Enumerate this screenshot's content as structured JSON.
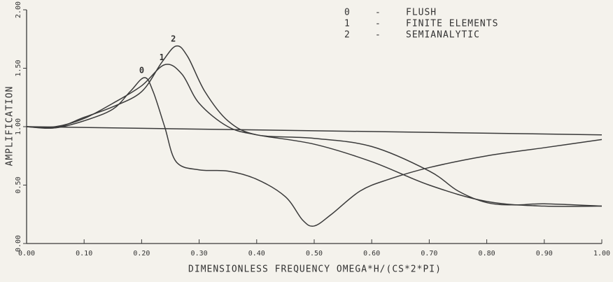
{
  "chart_data": {
    "type": "line",
    "xlabel": "DIMENSIONLESS FREQUENCY OMEGA*H/(CS*2*PI)",
    "ylabel": "AMPLIFICATION",
    "legend_separator": "-",
    "legend": "upper right",
    "color": "#3a3a3a",
    "xlim": [
      0,
      1
    ],
    "ylim": [
      0,
      2
    ],
    "xticks": [
      {
        "value": 0,
        "label": "0.00"
      },
      {
        "value": 0.1,
        "label": "0.10"
      },
      {
        "value": 0.2,
        "label": "0.20"
      },
      {
        "value": 0.3,
        "label": "0.30"
      },
      {
        "value": 0.4,
        "label": "0.40"
      },
      {
        "value": 0.5,
        "label": "0.50"
      },
      {
        "value": 0.6,
        "label": "0.60"
      },
      {
        "value": 0.7,
        "label": "0.70"
      },
      {
        "value": 0.8,
        "label": "0.80"
      },
      {
        "value": 0.9,
        "label": "0.90"
      },
      {
        "value": 1,
        "label": "1.00"
      }
    ],
    "yticks": [
      {
        "value": 0,
        "label": "0.00"
      },
      {
        "value": 0.5,
        "label": "0.50"
      },
      {
        "value": 1,
        "label": "1.00"
      },
      {
        "value": 1.5,
        "label": "1.50"
      },
      {
        "value": 2,
        "label": "2.00"
      }
    ],
    "reference": {
      "x": [
        0,
        1
      ],
      "values": [
        1.0,
        0.93
      ]
    },
    "series": [
      {
        "id": "0",
        "name": "FLUSH",
        "x": [
          0,
          0.05,
          0.1,
          0.15,
          0.18,
          0.205,
          0.22,
          0.24,
          0.26,
          0.3,
          0.35,
          0.4,
          0.45,
          0.48,
          0.5,
          0.53,
          0.58,
          0.63,
          0.7,
          0.8,
          0.9,
          1.0
        ],
        "values": [
          1.0,
          0.99,
          1.05,
          1.15,
          1.3,
          1.42,
          1.3,
          1.0,
          0.7,
          0.63,
          0.62,
          0.55,
          0.4,
          0.2,
          0.15,
          0.25,
          0.45,
          0.55,
          0.65,
          0.75,
          0.82,
          0.89
        ]
      },
      {
        "id": "1",
        "name": "FINITE ELEMENTS",
        "x": [
          0,
          0.05,
          0.1,
          0.15,
          0.2,
          0.24,
          0.27,
          0.3,
          0.35,
          0.4,
          0.5,
          0.6,
          0.7,
          0.8,
          0.9,
          1.0
        ],
        "values": [
          1.0,
          1.0,
          1.07,
          1.2,
          1.35,
          1.53,
          1.45,
          1.2,
          1.0,
          0.93,
          0.85,
          0.7,
          0.5,
          0.36,
          0.32,
          0.32
        ]
      },
      {
        "id": "2",
        "name": "SEMIANALYTIC",
        "x": [
          0,
          0.05,
          0.1,
          0.15,
          0.2,
          0.235,
          0.26,
          0.28,
          0.31,
          0.35,
          0.4,
          0.5,
          0.6,
          0.7,
          0.75,
          0.8,
          0.85,
          0.9,
          1.0
        ],
        "values": [
          1.0,
          0.99,
          1.08,
          1.17,
          1.3,
          1.55,
          1.69,
          1.6,
          1.3,
          1.05,
          0.93,
          0.9,
          0.83,
          0.62,
          0.45,
          0.35,
          0.33,
          0.34,
          0.32
        ]
      }
    ]
  }
}
